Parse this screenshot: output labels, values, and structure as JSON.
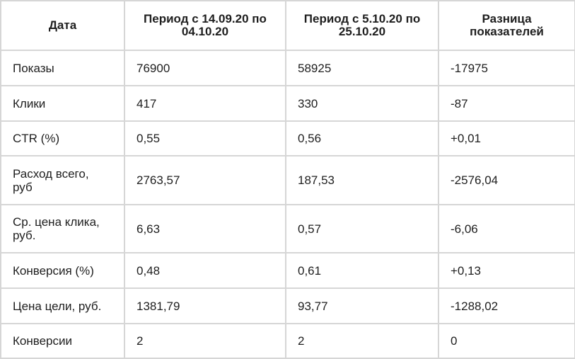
{
  "table": {
    "header": [
      "Дата",
      "Период с 14.09.20 по 04.10.20",
      "Период с 5.10.20 по 25.10.20",
      "Разница показателей"
    ],
    "rows": [
      [
        "Показы",
        "76900",
        "58925",
        "-17975"
      ],
      [
        "Клики",
        "417",
        "330",
        "-87"
      ],
      [
        "CTR (%)",
        "0,55",
        "0,56",
        "+0,01"
      ],
      [
        "Расход всего, руб",
        "2763,57",
        "187,53",
        "-2576,04"
      ],
      [
        "Ср. цена клика, руб.",
        "6,63",
        "0,57",
        "-6,06"
      ],
      [
        "Конверсия (%)",
        "0,48",
        "0,61",
        "+0,13"
      ],
      [
        "Цена цели, руб.",
        "1381,79",
        "93,77",
        "-1288,02"
      ],
      [
        "Конверсии",
        "2",
        "2",
        "0"
      ]
    ]
  }
}
